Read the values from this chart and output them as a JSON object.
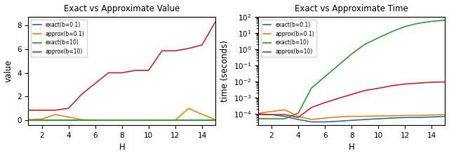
{
  "H": [
    1,
    2,
    3,
    4,
    5,
    6,
    7,
    8,
    9,
    10,
    11,
    12,
    13,
    14,
    15
  ],
  "value_exact_b01": [
    0.0,
    0.0,
    0.0,
    0.0,
    0.0,
    0.0,
    0.0,
    0.0,
    0.0,
    0.0,
    0.0,
    0.0,
    0.0,
    0.0,
    0.0
  ],
  "value_approx_b01": [
    0.05,
    0.1,
    0.48,
    0.28,
    0.05,
    0.02,
    0.01,
    0.01,
    0.01,
    0.01,
    0.02,
    0.02,
    1.0,
    0.5,
    0.05
  ],
  "value_exact_b10": [
    0.0,
    0.0,
    0.0,
    0.0,
    0.0,
    0.0,
    0.0,
    0.0,
    0.0,
    0.0,
    0.0,
    0.0,
    0.0,
    0.0,
    0.0
  ],
  "value_approx_b10": [
    0.85,
    0.85,
    0.85,
    1.0,
    2.2,
    3.1,
    4.0,
    4.0,
    4.2,
    4.2,
    5.85,
    5.85,
    6.05,
    6.35,
    8.3
  ],
  "time_exact_b01": [
    9e-05,
    9e-05,
    7e-05,
    4.5e-05,
    3.2e-05,
    3.2e-05,
    3.5e-05,
    4e-05,
    4.5e-05,
    5e-05,
    5.5e-05,
    6e-05,
    6e-05,
    6.5e-05,
    7e-05
  ],
  "time_approx_b01": [
    0.00011,
    0.00014,
    0.00018,
    7e-05,
    4.5e-05,
    5.5e-05,
    6.5e-05,
    7e-05,
    7e-05,
    7.5e-05,
    7.5e-05,
    8e-05,
    8e-05,
    8.5e-05,
    9e-05
  ],
  "time_exact_b10": [
    5e-05,
    5e-05,
    5e-05,
    0.00011,
    0.004,
    0.02,
    0.1,
    0.5,
    2.0,
    5.0,
    12.0,
    25.0,
    40.0,
    52.0,
    62.0
  ],
  "time_approx_b10": [
    0.0001,
    9e-05,
    9e-05,
    6e-05,
    0.00025,
    0.0005,
    0.0009,
    0.0016,
    0.0028,
    0.0038,
    0.0055,
    0.007,
    0.008,
    0.009,
    0.0095
  ],
  "colors": {
    "exact_b01": "#1f77b4",
    "approx_b01": "#ff7f0e",
    "exact_b10": "#2ca02c",
    "approx_b10": "#d62728"
  },
  "legend_labels": {
    "exact_b01": "exact(b=0.1)",
    "approx_b01": "approx(b=0.1)",
    "exact_b10": "exact(b=10)",
    "approx_b10": "approx(b=10)"
  },
  "title_value": "Exact vs Approximate Value",
  "title_time": "Exact vs Approximate Time",
  "xlabel": "H",
  "ylabel_value": "value",
  "ylabel_time": "time (seconds)",
  "time_ylim": [
    2e-05,
    100.0
  ],
  "xticks": [
    2,
    4,
    6,
    8,
    10,
    12,
    14
  ]
}
